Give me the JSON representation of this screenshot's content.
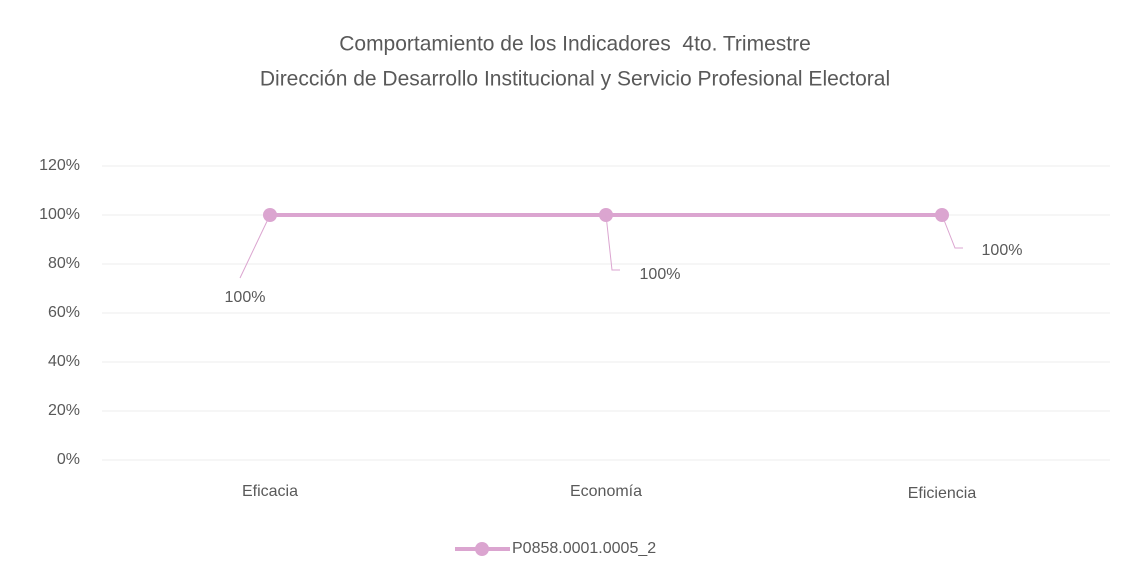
{
  "chart_data": {
    "type": "line",
    "title": "Comportamiento de los Indicadores  4to. Trimestre",
    "subtitle": "Dirección de Desarrollo Institucional y Servicio Profesional Electoral",
    "categories": [
      "Eficacia",
      "Economía",
      "Eficiencia"
    ],
    "series": [
      {
        "name": "P0858.0001.0005_2",
        "color": "#dba5d0",
        "values": [
          100,
          100,
          100
        ],
        "value_labels": [
          "100%",
          "100%",
          "100%"
        ]
      }
    ],
    "ylim": [
      0,
      120
    ],
    "yticks": [
      {
        "value": 0,
        "label": "0%"
      },
      {
        "value": 20,
        "label": "20%"
      },
      {
        "value": 40,
        "label": "40%"
      },
      {
        "value": 60,
        "label": "60%"
      },
      {
        "value": 80,
        "label": "80%"
      },
      {
        "value": 100,
        "label": "100%"
      },
      {
        "value": 120,
        "label": "120%"
      }
    ],
    "grid": true,
    "legend": "bottom"
  }
}
